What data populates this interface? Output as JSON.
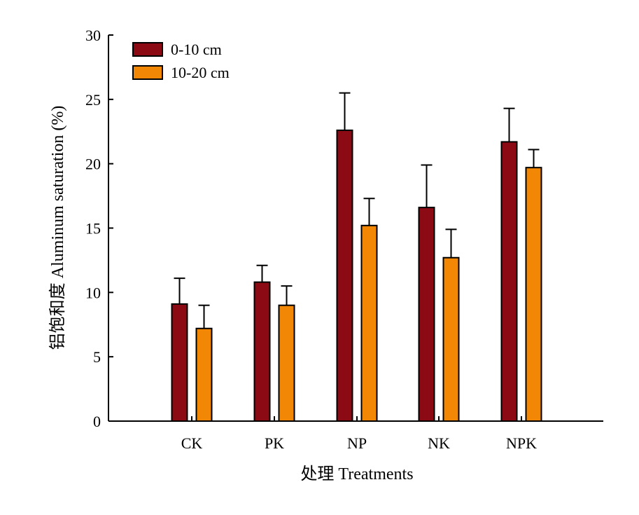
{
  "chart_data": {
    "type": "bar",
    "xlabel": "处理 Treatments",
    "ylabel": "铝饱和度 Aluminum saturation (%)",
    "categories": [
      "CK",
      "PK",
      "NP",
      "NK",
      "NPK"
    ],
    "ylim": [
      0,
      30
    ],
    "yticks": [
      "0",
      "5",
      "10",
      "15",
      "20",
      "25",
      "30"
    ],
    "grid": false,
    "legend_position": "top-left",
    "series": [
      {
        "name": "0-10 cm",
        "color": "#8B0A14",
        "values": [
          9.1,
          10.8,
          22.6,
          16.6,
          21.7
        ],
        "errors": [
          2.0,
          1.3,
          2.9,
          3.3,
          2.6
        ]
      },
      {
        "name": "10-20 cm",
        "color": "#F28705",
        "values": [
          7.2,
          9.0,
          15.2,
          12.7,
          19.7
        ],
        "errors": [
          1.8,
          1.5,
          2.1,
          2.2,
          1.4
        ]
      }
    ]
  }
}
